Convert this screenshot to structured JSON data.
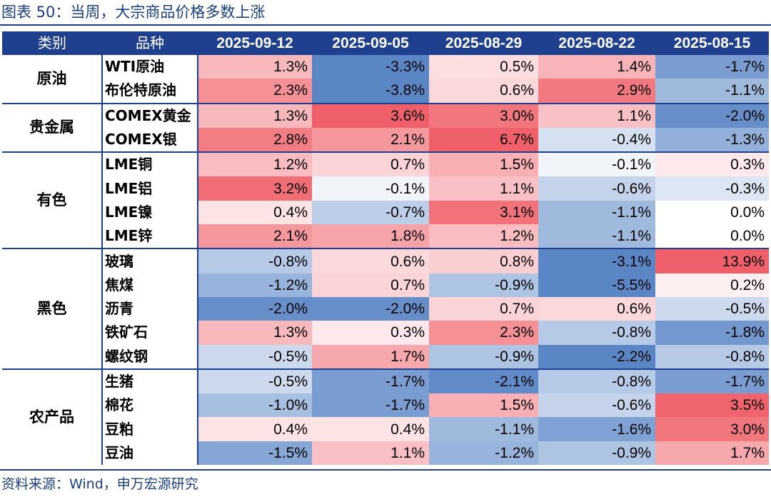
{
  "title": "图表 50：当周，大宗商品价格多数上涨",
  "source": "资料来源：Wind，申万宏源研究",
  "table": {
    "header_category": "类别",
    "header_variety": "品种",
    "dates": [
      "2025-09-12",
      "2025-09-05",
      "2025-08-29",
      "2025-08-22",
      "2025-08-15"
    ],
    "colors": {
      "header_bg": "#1f3f8f",
      "positive_max": "#f0606a",
      "negative_max": "#5a86c6",
      "neutral": "#ffffff"
    },
    "groups": [
      {
        "name": "原油",
        "rows": [
          {
            "variety": "WTI原油",
            "values": [
              "1.3%",
              "-3.3%",
              "0.5%",
              "1.4%",
              "-1.7%"
            ]
          },
          {
            "variety": "布伦特原油",
            "values": [
              "2.3%",
              "-3.8%",
              "0.6%",
              "2.9%",
              "-1.1%"
            ]
          }
        ]
      },
      {
        "name": "贵金属",
        "rows": [
          {
            "variety": "COMEX黄金",
            "values": [
              "1.3%",
              "3.6%",
              "3.0%",
              "1.1%",
              "-2.0%"
            ]
          },
          {
            "variety": "COMEX银",
            "values": [
              "2.8%",
              "2.1%",
              "6.7%",
              "-0.4%",
              "-1.3%"
            ]
          }
        ]
      },
      {
        "name": "有色",
        "rows": [
          {
            "variety": "LME铜",
            "values": [
              "1.2%",
              "0.7%",
              "1.5%",
              "-0.1%",
              "0.3%"
            ]
          },
          {
            "variety": "LME铝",
            "values": [
              "3.2%",
              "-0.1%",
              "1.1%",
              "-0.6%",
              "-0.3%"
            ]
          },
          {
            "variety": "LME镍",
            "values": [
              "0.4%",
              "-0.7%",
              "3.1%",
              "-1.1%",
              "0.0%"
            ]
          },
          {
            "variety": "LME锌",
            "values": [
              "2.1%",
              "1.8%",
              "1.2%",
              "-1.1%",
              "0.0%"
            ]
          }
        ]
      },
      {
        "name": "黑色",
        "rows": [
          {
            "variety": "玻璃",
            "values": [
              "-0.8%",
              "0.6%",
              "0.8%",
              "-3.1%",
              "13.9%"
            ]
          },
          {
            "variety": "焦煤",
            "values": [
              "-1.2%",
              "0.7%",
              "-0.9%",
              "-5.5%",
              "0.2%"
            ]
          },
          {
            "variety": "沥青",
            "values": [
              "-2.0%",
              "-2.0%",
              "0.7%",
              "0.6%",
              "-0.5%"
            ]
          },
          {
            "variety": "铁矿石",
            "values": [
              "1.3%",
              "0.3%",
              "2.3%",
              "-0.8%",
              "-1.8%"
            ]
          },
          {
            "variety": "螺纹钢",
            "values": [
              "-0.5%",
              "1.7%",
              "-0.9%",
              "-2.2%",
              "-0.8%"
            ]
          }
        ]
      },
      {
        "name": "农产品",
        "rows": [
          {
            "variety": "生猪",
            "values": [
              "-0.5%",
              "-1.7%",
              "-2.1%",
              "-0.8%",
              "-1.7%"
            ]
          },
          {
            "variety": "棉花",
            "values": [
              "-1.0%",
              "-1.7%",
              "1.5%",
              "-0.6%",
              "3.5%"
            ]
          },
          {
            "variety": "豆粕",
            "values": [
              "0.4%",
              "0.4%",
              "-1.1%",
              "-1.6%",
              "3.0%"
            ]
          },
          {
            "variety": "豆油",
            "values": [
              "-1.5%",
              "1.1%",
              "-1.2%",
              "-0.9%",
              "1.7%"
            ]
          }
        ]
      }
    ]
  }
}
